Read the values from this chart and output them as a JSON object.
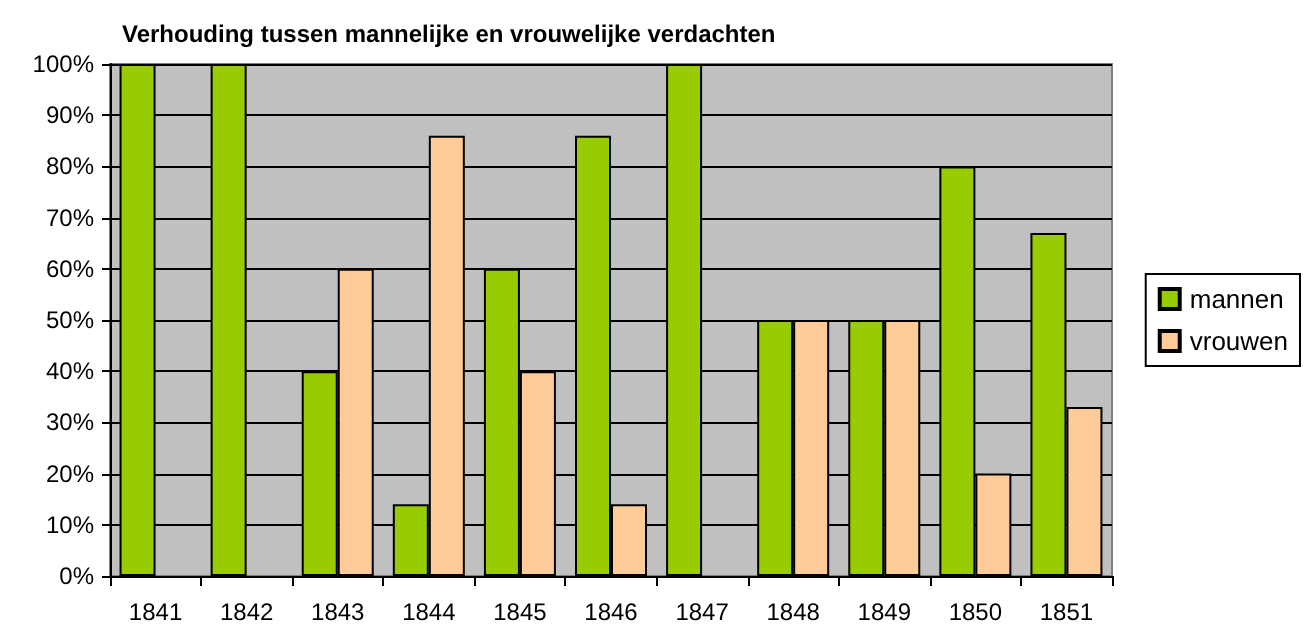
{
  "chart_data": {
    "type": "bar",
    "title": "Verhouding tussen mannelijke en vrouwelijke verdachten",
    "categories": [
      "1841",
      "1842",
      "1843",
      "1844",
      "1845",
      "1846",
      "1847",
      "1848",
      "1849",
      "1850",
      "1851"
    ],
    "series": [
      {
        "name": "mannen",
        "color": "#99cc00",
        "values": [
          100,
          100,
          40,
          14,
          60,
          86,
          100,
          50,
          50,
          80,
          67
        ]
      },
      {
        "name": "vrouwen",
        "color": "#ffcc99",
        "values": [
          0,
          0,
          60,
          86,
          40,
          14,
          0,
          50,
          50,
          20,
          33
        ]
      }
    ],
    "ylim": [
      0,
      100
    ],
    "yticks": [
      {
        "value": 0,
        "label": "0%"
      },
      {
        "value": 10,
        "label": "10%"
      },
      {
        "value": 20,
        "label": "20%"
      },
      {
        "value": 30,
        "label": "30%"
      },
      {
        "value": 40,
        "label": "40%"
      },
      {
        "value": 50,
        "label": "50%"
      },
      {
        "value": 60,
        "label": "60%"
      },
      {
        "value": 70,
        "label": "70%"
      },
      {
        "value": 80,
        "label": "80%"
      },
      {
        "value": 90,
        "label": "90%"
      },
      {
        "value": 100,
        "label": "100%"
      }
    ],
    "grid": "y",
    "legend": "right"
  }
}
